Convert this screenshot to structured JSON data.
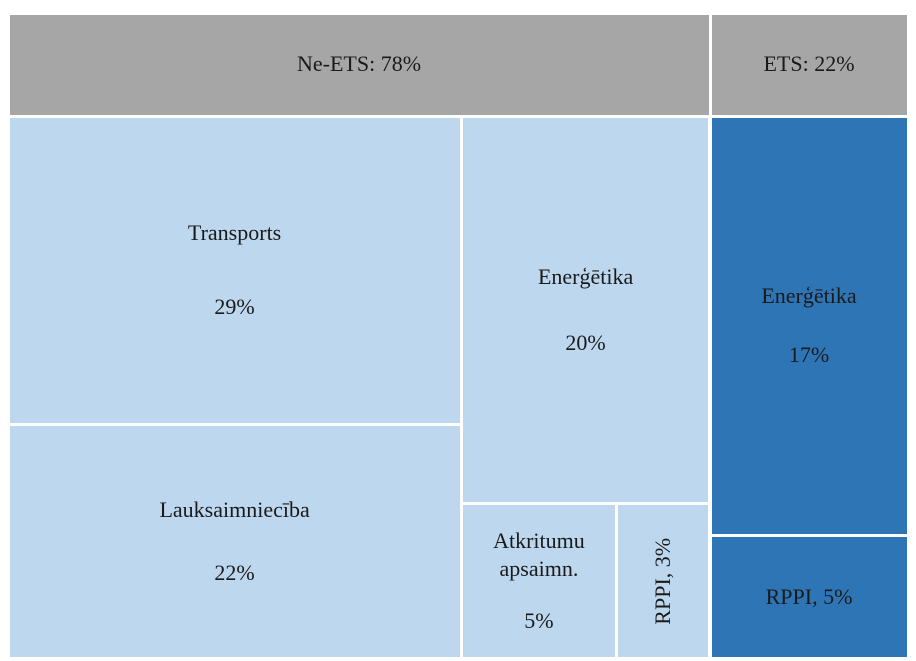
{
  "chart_data": {
    "type": "treemap",
    "header_color": "#a6a6a6",
    "groups": [
      {
        "label": "Ne-ETS: 78%",
        "value": 78,
        "color": "#bdd7ee",
        "children": [
          {
            "name": "Transports",
            "value": 29,
            "value_label": "29%"
          },
          {
            "name": "Lauksaimniecība",
            "value": 22,
            "value_label": "22%"
          },
          {
            "name": "Enerģētika",
            "value": 20,
            "value_label": "20%"
          },
          {
            "name": "Atkritumu apsaimn.",
            "value": 5,
            "value_label": "5%"
          },
          {
            "label": "RPPI, 3%",
            "value": 3
          }
        ]
      },
      {
        "label": "ETS: 22%",
        "value": 22,
        "color": "#2e75b6",
        "children": [
          {
            "name": "Enerģētika",
            "value": 17,
            "value_label": "17%"
          },
          {
            "label": "RPPI, 5%",
            "value": 5
          }
        ]
      }
    ]
  }
}
